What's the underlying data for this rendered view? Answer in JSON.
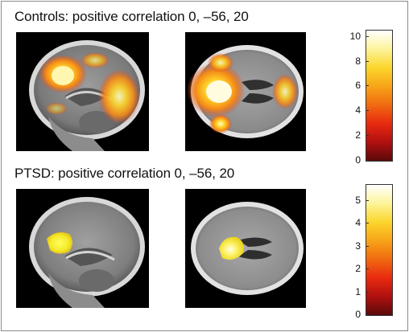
{
  "sections": [
    {
      "title": "Controls: positive correlation 0, –56, 20",
      "colorbar": {
        "ticks": [
          "0",
          "2",
          "4",
          "6",
          "8",
          "10"
        ],
        "max": 10.5
      }
    },
    {
      "title": "PTSD: positive correlation 0, –56, 20",
      "colorbar": {
        "ticks": [
          "0",
          "1",
          "2",
          "3",
          "4",
          "5"
        ],
        "max": 5.7
      }
    }
  ],
  "colormap": [
    "#5a0a0a",
    "#b01010",
    "#e82a10",
    "#f06a10",
    "#f7a418",
    "#fbd62c",
    "#fdf49a",
    "#ffffff"
  ]
}
